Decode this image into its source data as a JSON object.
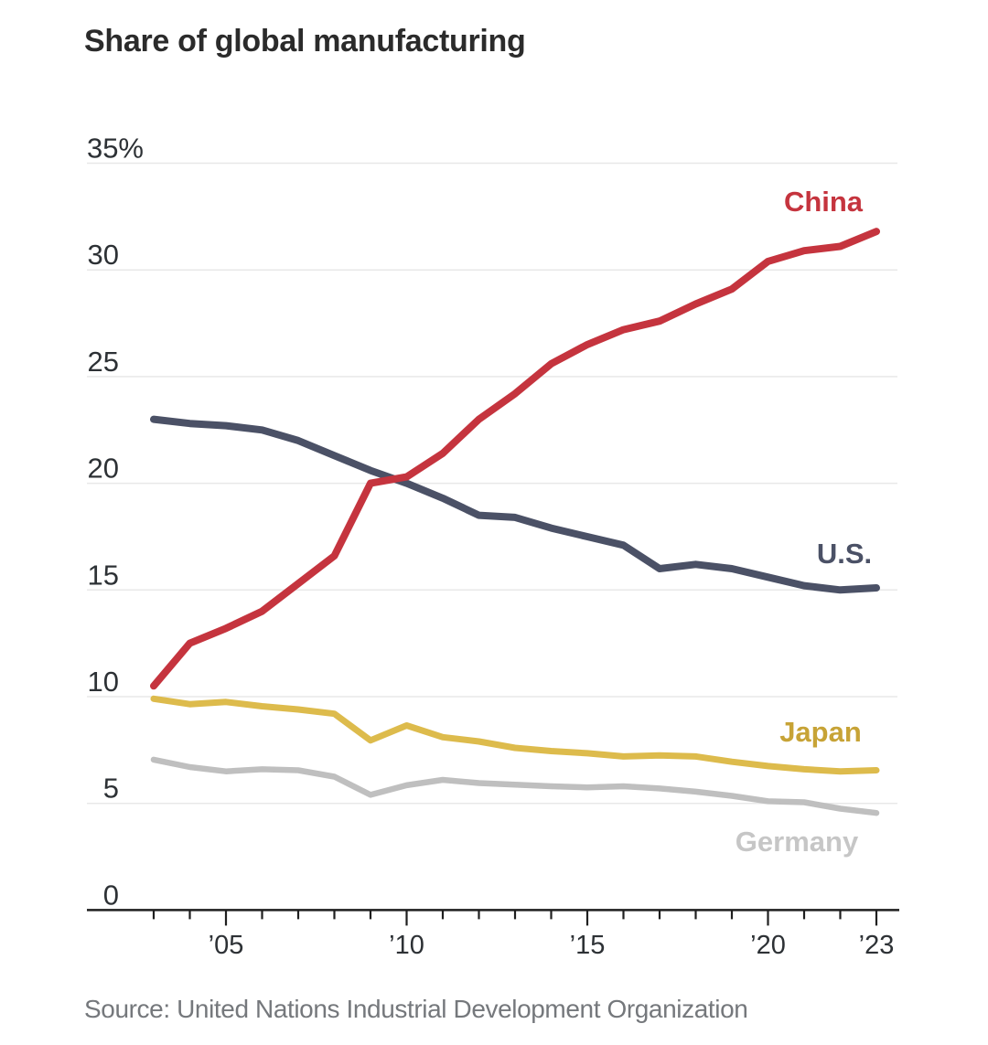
{
  "title": "Share of global manufacturing",
  "source": "Source: United Nations Industrial Development Organization",
  "colors": {
    "background": "#ffffff",
    "grid": "#e8e8e8",
    "axis": "#1f1f1f",
    "tick_text": "#2d3135",
    "title": "#2b2b2b",
    "source_text": "#75787c"
  },
  "chart_data": {
    "type": "line",
    "x": [
      2003,
      2004,
      2005,
      2006,
      2007,
      2008,
      2009,
      2010,
      2011,
      2012,
      2013,
      2014,
      2015,
      2016,
      2017,
      2018,
      2019,
      2020,
      2021,
      2022,
      2023
    ],
    "xlabel": "",
    "ylabel": "Share of global manufacturing (%)",
    "ylim": [
      0,
      35
    ],
    "grid": "horizontal",
    "legend": "end-of-line-labels",
    "y_ticks": [
      {
        "value": 35,
        "label": "35%"
      },
      {
        "value": 30,
        "label": "30"
      },
      {
        "value": 25,
        "label": "25"
      },
      {
        "value": 20,
        "label": "20"
      },
      {
        "value": 15,
        "label": "15"
      },
      {
        "value": 10,
        "label": "10"
      },
      {
        "value": 5,
        "label": "5"
      },
      {
        "value": 0,
        "label": "0"
      }
    ],
    "x_ticks_labeled": [
      {
        "year": 2005,
        "label": "’05"
      },
      {
        "year": 2010,
        "label": "’10"
      },
      {
        "year": 2015,
        "label": "’15"
      },
      {
        "year": 2020,
        "label": "’20"
      },
      {
        "year": 2023,
        "label": "’23"
      }
    ],
    "series": [
      {
        "id": "germany",
        "name": "Germany",
        "color": "#bfbfbf",
        "label_color": "#c6c6c6",
        "values": [
          7.05,
          6.7,
          6.5,
          6.6,
          6.55,
          6.25,
          5.4,
          5.85,
          6.1,
          5.95,
          5.88,
          5.8,
          5.75,
          5.8,
          5.7,
          5.55,
          5.35,
          5.1,
          5.05,
          4.75,
          4.55
        ]
      },
      {
        "id": "japan",
        "name": "Japan",
        "color": "#ddbb4c",
        "label_color": "#c7a336",
        "values": [
          9.9,
          9.65,
          9.75,
          9.55,
          9.4,
          9.2,
          7.95,
          8.65,
          8.1,
          7.9,
          7.6,
          7.45,
          7.35,
          7.2,
          7.25,
          7.2,
          6.95,
          6.75,
          6.6,
          6.5,
          6.55
        ]
      },
      {
        "id": "us",
        "name": "U.S.",
        "color": "#4b5166",
        "label_color": "#4b5166",
        "values": [
          23.0,
          22.8,
          22.7,
          22.5,
          22.0,
          21.3,
          20.6,
          20.0,
          19.3,
          18.5,
          18.4,
          17.9,
          17.5,
          17.1,
          16.0,
          16.2,
          16.0,
          15.6,
          15.2,
          15.0,
          15.1
        ]
      },
      {
        "id": "china",
        "name": "China",
        "color": "#c5343e",
        "label_color": "#c5343e",
        "values": [
          10.5,
          12.5,
          13.2,
          14.0,
          15.3,
          16.6,
          20.0,
          20.3,
          21.4,
          23.0,
          24.2,
          25.6,
          26.5,
          27.2,
          27.6,
          28.4,
          29.1,
          30.4,
          30.9,
          31.1,
          31.8
        ]
      }
    ]
  }
}
